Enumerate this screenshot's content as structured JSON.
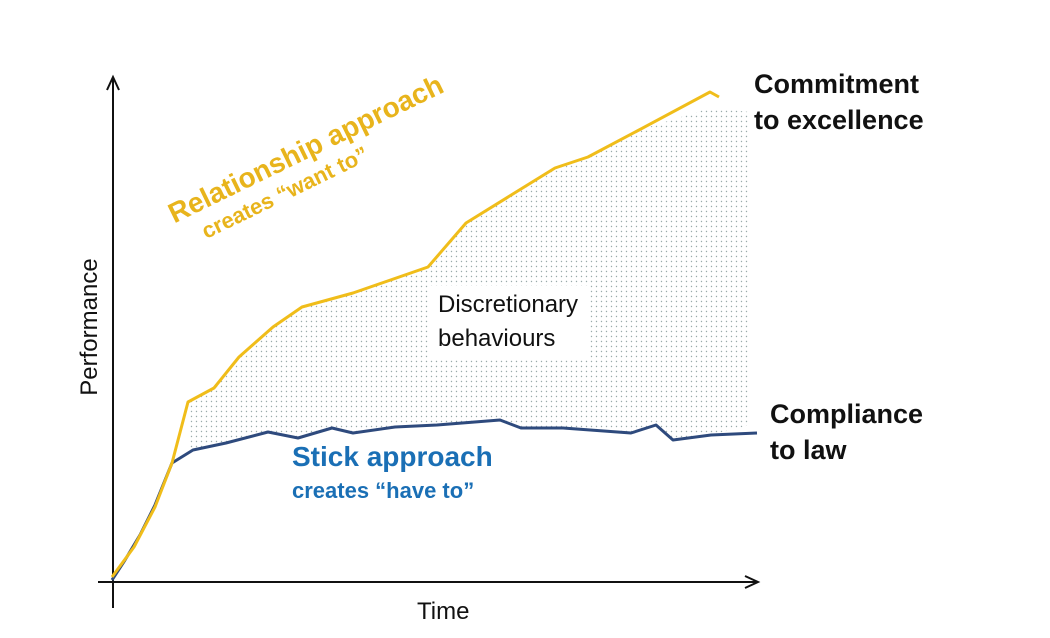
{
  "axes": {
    "y_label": "Performance",
    "x_label": "Time"
  },
  "labels": {
    "commitment": [
      "Commitment",
      "to excellence"
    ],
    "compliance": [
      "Compliance",
      "to law"
    ],
    "discretionary": [
      "Discretionary",
      "behaviours"
    ],
    "stick": [
      "Stick approach",
      "creates “have to”"
    ],
    "relationship": [
      "Relationship approach",
      "creates “want to”"
    ]
  },
  "colors": {
    "relationship": "#f0bd1a",
    "stick": "#2e4a7d",
    "stick_text": "#1a6fb5",
    "relationship_text": "#e8b41c"
  }
}
